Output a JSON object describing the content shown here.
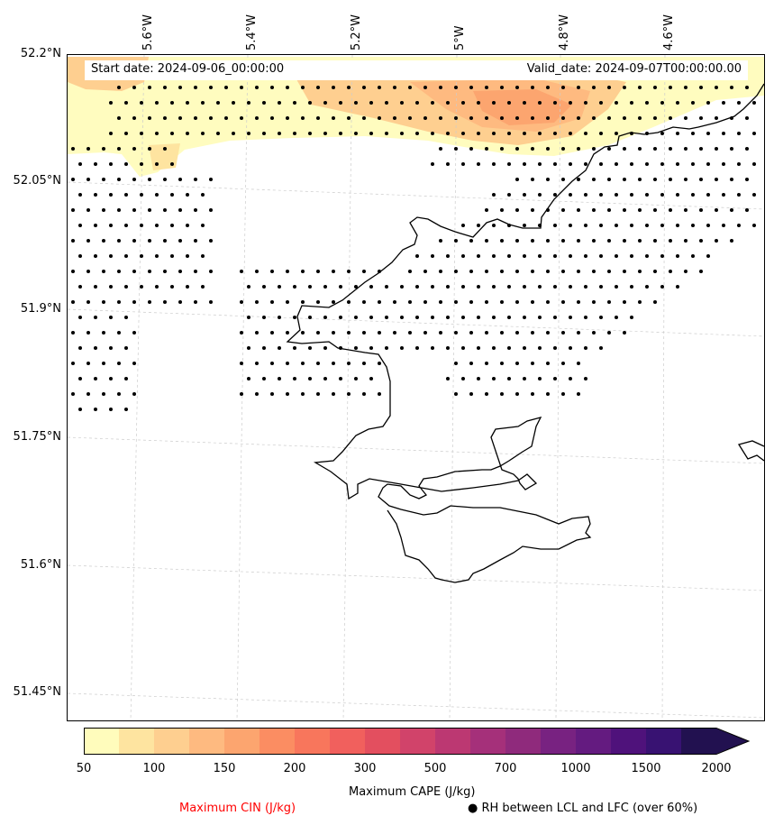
{
  "map": {
    "start_date": "Start date: 2024-09-06_00:00:00",
    "valid_date": "Valid_date: 2024-09-07T00:00:00.00",
    "lat_labels": [
      "52.2°N",
      "52.05°N",
      "51.9°N",
      "51.75°N",
      "51.6°N",
      "51.45°N"
    ],
    "lon_labels": [
      "5.6°W",
      "5.4°W",
      "5.2°W",
      "5°W",
      "4.8°W",
      "4.6°W"
    ]
  },
  "colorbar": {
    "label": "Maximum CAPE (J/kg)",
    "ticks": [
      "50",
      "100",
      "150",
      "200",
      "300",
      "500",
      "700",
      "1000",
      "1500",
      "2000"
    ],
    "colors": [
      "#fffcbc",
      "#fee4a0",
      "#fecf90",
      "#feba80",
      "#fca56f",
      "#fb8d62",
      "#f8765c",
      "#f1605d",
      "#e34f5f",
      "#d1436a",
      "#bc3872",
      "#a5307a",
      "#8f2a7c",
      "#782281",
      "#641b80",
      "#4f127b",
      "#381272",
      "#221150"
    ],
    "extend": "max"
  },
  "legend": {
    "cin_label": "Maximum CIN (J/kg)",
    "cin_color": "#ff0000",
    "rh_label": "RH between LCL and LFC (over 60%)",
    "rh_marker": "●"
  }
}
